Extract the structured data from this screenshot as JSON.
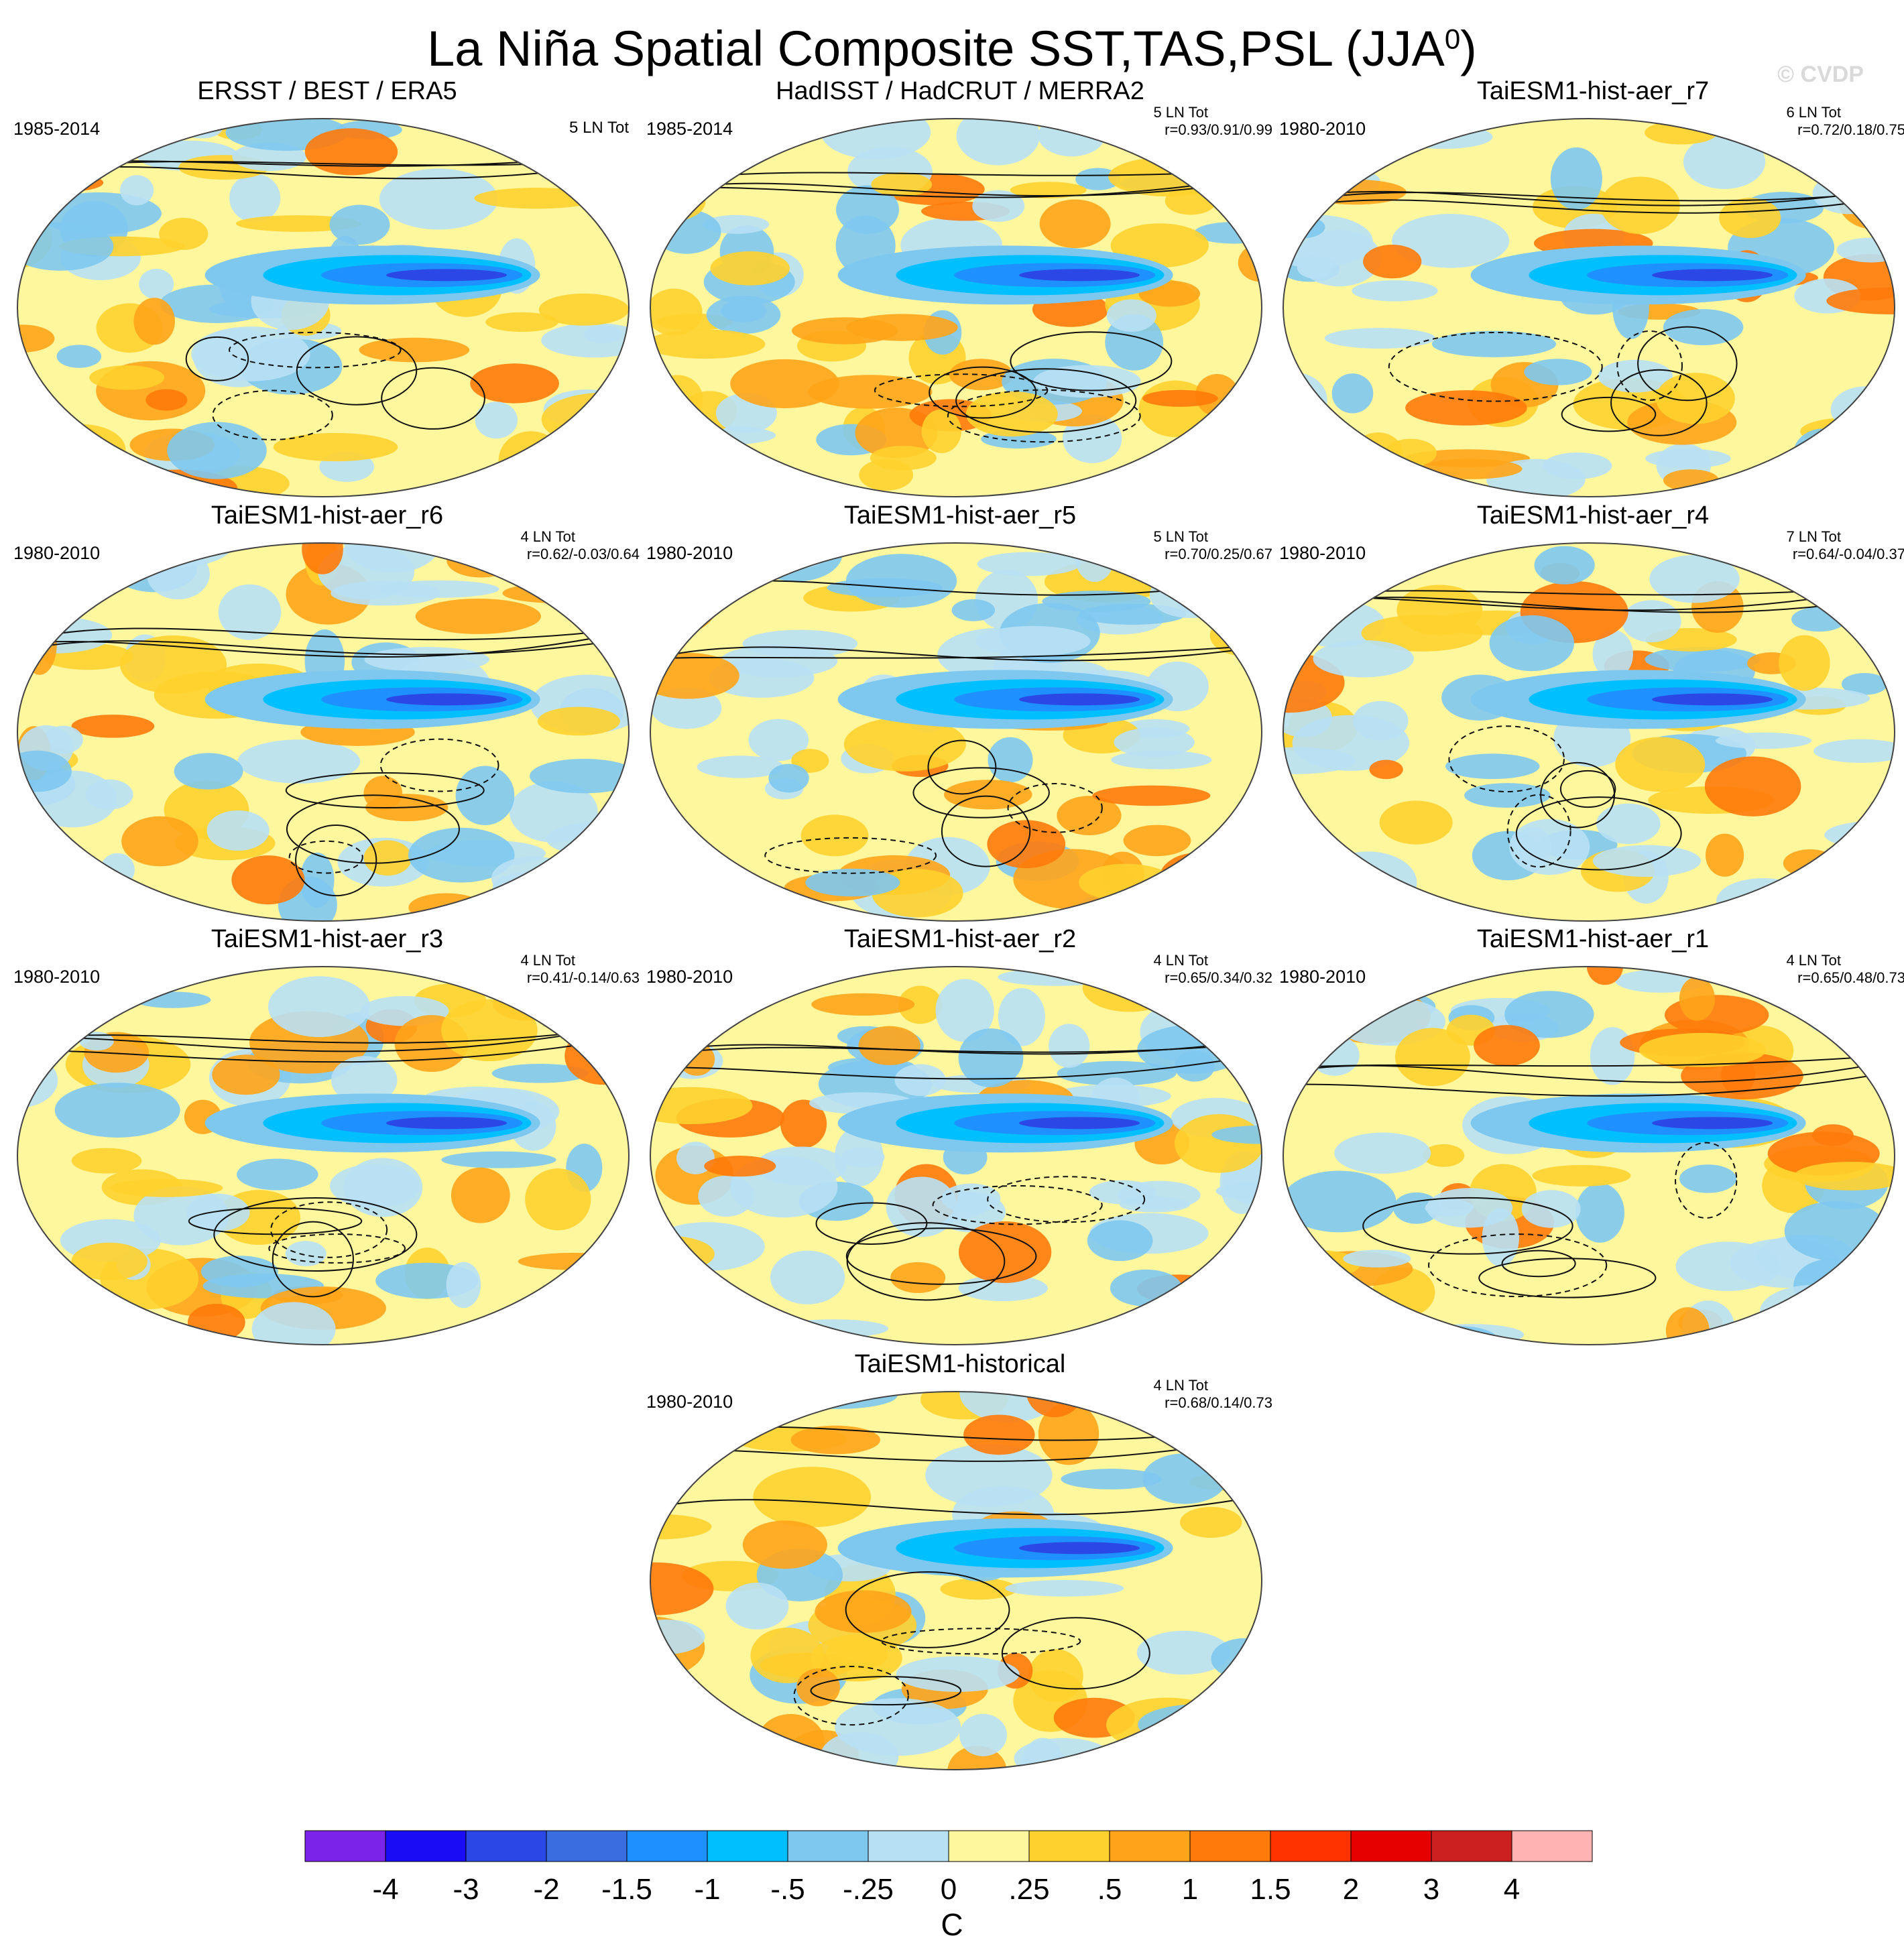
{
  "header": {
    "title_main": "La Niña Spatial Composite SST,TAS,PSL (JJA",
    "title_sup": "0",
    "title_end": ")",
    "credit": "© CVDP"
  },
  "chart_data": {
    "type": "heatmap",
    "title": "La Niña Spatial Composite SST,TAS,PSL (JJA0)",
    "units": "C",
    "colorbar": {
      "ticks": [
        "-4",
        "-3",
        "-2",
        "-1.5",
        "-1",
        "-.5",
        "-.25",
        "0",
        ".25",
        ".5",
        "1",
        "1.5",
        "2",
        "3",
        "4"
      ],
      "colors": [
        "#7c23ea",
        "#1a0cf5",
        "#2b48e6",
        "#3a6ee0",
        "#1e90ff",
        "#00bfff",
        "#7ec8f0",
        "#b8e0f4",
        "#fff79e",
        "#ffd12e",
        "#ffa41a",
        "#ff7a0a",
        "#ff3300",
        "#e60000",
        "#cc1f1f",
        "#ffb3b3"
      ],
      "label": "C"
    },
    "panels": [
      {
        "id": "obs1",
        "title": "ERSST / BEST / ERA5",
        "years": "1985-2014",
        "count": "5 LN Tot",
        "corr": ""
      },
      {
        "id": "obs2",
        "title": "HadISST / HadCRUT / MERRA2",
        "years": "1985-2014",
        "count": "5 LN Tot",
        "corr": "r=0.93/0.91/0.99"
      },
      {
        "id": "r7",
        "title": "TaiESM1-hist-aer_r7",
        "years": "1980-2010",
        "count": "6 LN Tot",
        "corr": "r=0.72/0.18/0.75"
      },
      {
        "id": "r6",
        "title": "TaiESM1-hist-aer_r6",
        "years": "1980-2010",
        "count": "4 LN Tot",
        "corr": "r=0.62/-0.03/0.64"
      },
      {
        "id": "r5",
        "title": "TaiESM1-hist-aer_r5",
        "years": "1980-2010",
        "count": "5 LN Tot",
        "corr": "r=0.70/0.25/0.67"
      },
      {
        "id": "r4",
        "title": "TaiESM1-hist-aer_r4",
        "years": "1980-2010",
        "count": "7 LN Tot",
        "corr": "r=0.64/-0.04/0.37"
      },
      {
        "id": "r3",
        "title": "TaiESM1-hist-aer_r3",
        "years": "1980-2010",
        "count": "4 LN Tot",
        "corr": "r=0.41/-0.14/0.63"
      },
      {
        "id": "r2",
        "title": "TaiESM1-hist-aer_r2",
        "years": "1980-2010",
        "count": "4 LN Tot",
        "corr": "r=0.65/0.34/0.32"
      },
      {
        "id": "r1",
        "title": "TaiESM1-hist-aer_r1",
        "years": "1980-2010",
        "count": "4 LN Tot",
        "corr": "r=0.65/0.48/0.73"
      },
      {
        "id": "hist",
        "title": "TaiESM1-historical",
        "years": "1980-2010",
        "count": "4 LN Tot",
        "corr": "r=0.68/0.14/0.73"
      }
    ]
  }
}
